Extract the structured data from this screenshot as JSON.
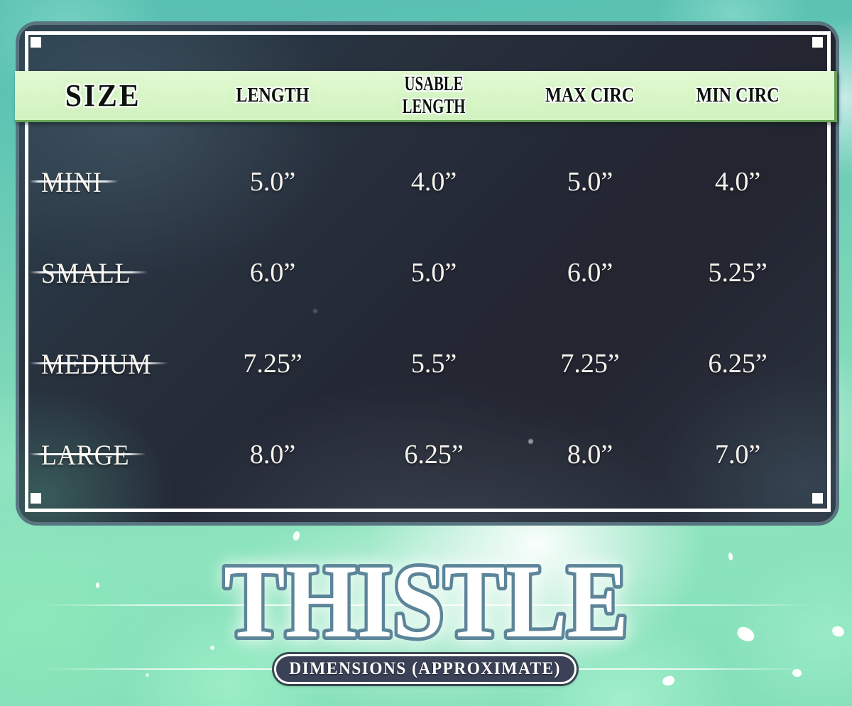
{
  "header": {
    "columns": [
      "SIZE",
      "LENGTH",
      "USABLE LENGTH",
      "MAX CIRC",
      "MIN CIRC"
    ]
  },
  "table": {
    "rows": [
      {
        "label": "MINI",
        "values": [
          "5.0”",
          "4.0”",
          "5.0”",
          "4.0”"
        ]
      },
      {
        "label": "SMALL",
        "values": [
          "6.0”",
          "5.0”",
          "6.0”",
          "5.25”"
        ]
      },
      {
        "label": "MEDIUM",
        "values": [
          "7.25”",
          "5.5”",
          "7.25”",
          "6.25”"
        ]
      },
      {
        "label": "LARGE",
        "values": [
          "8.0”",
          "6.25”",
          "8.0”",
          "7.0”"
        ]
      }
    ]
  },
  "footer": {
    "title": "THISTLE",
    "badge": "DIMENSIONS (APPROXIMATE)"
  },
  "chart_data": {
    "type": "table",
    "title": "THISTLE",
    "subtitle": "DIMENSIONS (APPROXIMATE)",
    "columns": [
      "SIZE",
      "LENGTH",
      "USABLE LENGTH",
      "MAX CIRC",
      "MIN CIRC"
    ],
    "rows": [
      [
        "MINI",
        "5.0”",
        "4.0”",
        "5.0”",
        "4.0”"
      ],
      [
        "SMALL",
        "6.0”",
        "5.0”",
        "6.0”",
        "5.25”"
      ],
      [
        "MEDIUM",
        "7.25”",
        "5.5”",
        "7.25”",
        "6.25”"
      ],
      [
        "LARGE",
        "8.0”",
        "6.25”",
        "8.0”",
        "7.0”"
      ]
    ],
    "units": "inches"
  },
  "colors": {
    "background_teal": "#57bfb1",
    "background_mint": "#8ce4bd",
    "panel_fill": "#252a36",
    "panel_edge": "#5c7a86",
    "frame_white": "#ffffff",
    "header_band": "#d9f6c8",
    "header_band_border": "#68a257",
    "header_text": "#0b120c",
    "body_text": "#f5f2ec",
    "title_fill": "#ffffff",
    "title_stroke": "#5d8599",
    "badge_fill": "#3b4156"
  }
}
